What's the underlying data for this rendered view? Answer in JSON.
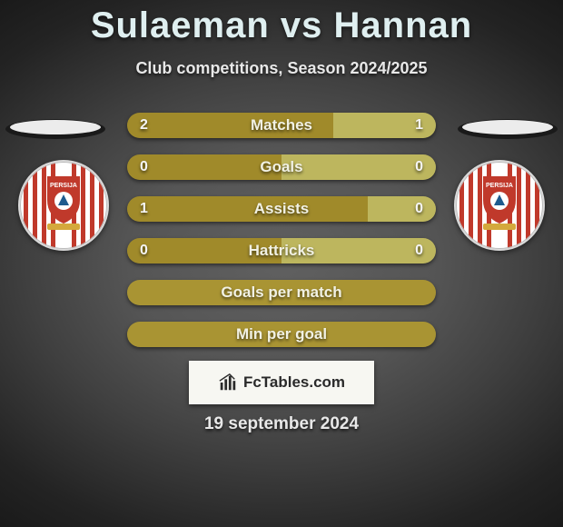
{
  "title": "Sulaeman vs Hannan",
  "subtitle": "Club competitions, Season 2024/2025",
  "brand": "FcTables.com",
  "date": "19 september 2024",
  "colors": {
    "bar_left": "#a08a2a",
    "bar_right": "#bdb65e",
    "bar_full": "#a99433",
    "crest_stripe": "#c0392b",
    "crest_blue": "#1e5b8e",
    "crest_gold": "#d4a93c"
  },
  "bars": [
    {
      "label": "Matches",
      "left": "2",
      "right": "1",
      "split": 66.7,
      "show_values": true
    },
    {
      "label": "Goals",
      "left": "0",
      "right": "0",
      "split": 50,
      "show_values": true
    },
    {
      "label": "Assists",
      "left": "1",
      "right": "0",
      "split": 78,
      "show_values": true
    },
    {
      "label": "Hattricks",
      "left": "0",
      "right": "0",
      "split": 50,
      "show_values": true
    },
    {
      "label": "Goals per match",
      "left": "",
      "right": "",
      "split": 100,
      "show_values": false
    },
    {
      "label": "Min per goal",
      "left": "",
      "right": "",
      "split": 100,
      "show_values": false
    }
  ]
}
